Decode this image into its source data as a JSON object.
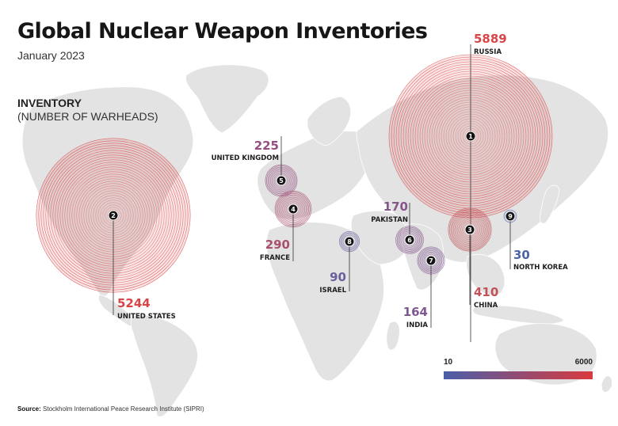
{
  "header": {
    "title": "Global Nuclear Weapon Inventories",
    "subtitle": "January 2023"
  },
  "legend": {
    "heading": "INVENTORY",
    "subheading": "(NUMBER OF WARHEADS)",
    "scale_min": "10",
    "scale_max": "6000",
    "color_low": "#4a5ea8",
    "color_high": "#d93a3f"
  },
  "source": {
    "label": "Source:",
    "text": "Stockholm International Peace Research Institute (SIPRI)"
  },
  "countries": [
    {
      "rank": "1",
      "name": "RUSSIA",
      "value": "5889",
      "color": "#d94547"
    },
    {
      "rank": "2",
      "name": "UNITED STATES",
      "value": "5244",
      "color": "#d94547"
    },
    {
      "rank": "3",
      "name": "CHINA",
      "value": "410",
      "color": "#c25258"
    },
    {
      "rank": "4",
      "name": "FRANCE",
      "value": "290",
      "color": "#a84f6f"
    },
    {
      "rank": "5",
      "name": "UNITED KINGDOM",
      "value": "225",
      "color": "#944f80"
    },
    {
      "rank": "6",
      "name": "PAKISTAN",
      "value": "170",
      "color": "#85548b"
    },
    {
      "rank": "7",
      "name": "INDIA",
      "value": "164",
      "color": "#7e5790"
    },
    {
      "rank": "8",
      "name": "ISRAEL",
      "value": "90",
      "color": "#6a5e9d"
    },
    {
      "rank": "9",
      "name": "NORTH KOREA",
      "value": "30",
      "color": "#4b63a8"
    }
  ]
}
